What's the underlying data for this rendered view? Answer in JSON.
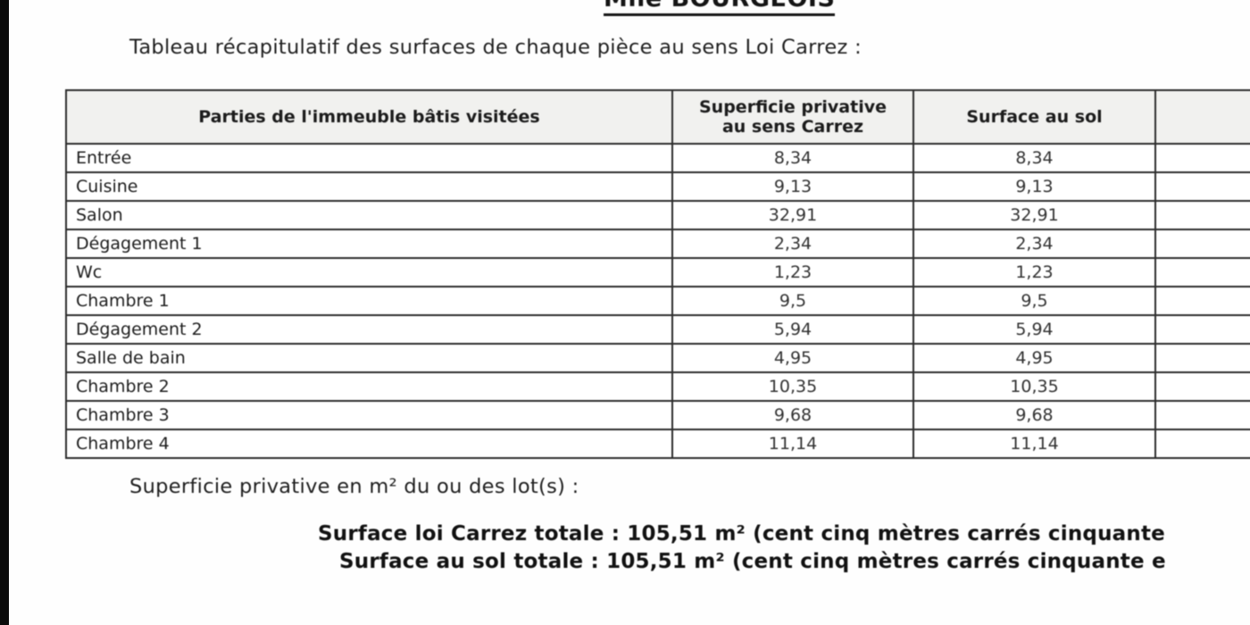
{
  "page": {
    "header_name": "Mlle BOURGEOIS",
    "intro": "Tableau récapitulatif des surfaces de chaque pièce au sens Loi Carrez :",
    "lots_line": "Superficie privative en m² du ou des lot(s) :",
    "total_carrez": "Surface loi Carrez totale : 105,51 m² (cent cinq mètres carrés cinquante",
    "total_sol": "Surface au sol totale : 105,51 m² (cent cinq mètres carrés cinquante e",
    "total_value": "105,51"
  },
  "table": {
    "headers": [
      "Parties de l'immeuble bâtis visitées",
      "Superficie privative au sens Carrez",
      "Surface au sol",
      ""
    ],
    "rows": [
      {
        "room": "Entrée",
        "carrez": "8,34",
        "sol": "8,34"
      },
      {
        "room": "Cuisine",
        "carrez": "9,13",
        "sol": "9,13"
      },
      {
        "room": "Salon",
        "carrez": "32,91",
        "sol": "32,91"
      },
      {
        "room": "Dégagement 1",
        "carrez": "2,34",
        "sol": "2,34"
      },
      {
        "room": "Wc",
        "carrez": "1,23",
        "sol": "1,23"
      },
      {
        "room": "Chambre 1",
        "carrez": "9,5",
        "sol": "9,5"
      },
      {
        "room": "Dégagement 2",
        "carrez": "5,94",
        "sol": "5,94"
      },
      {
        "room": "Salle de bain",
        "carrez": "4,95",
        "sol": "4,95"
      },
      {
        "room": "Chambre 2",
        "carrez": "10,35",
        "sol": "10,35"
      },
      {
        "room": "Chambre 3",
        "carrez": "9,68",
        "sol": "9,68"
      },
      {
        "room": "Chambre 4",
        "carrez": "11,14",
        "sol": "11,14"
      }
    ]
  }
}
